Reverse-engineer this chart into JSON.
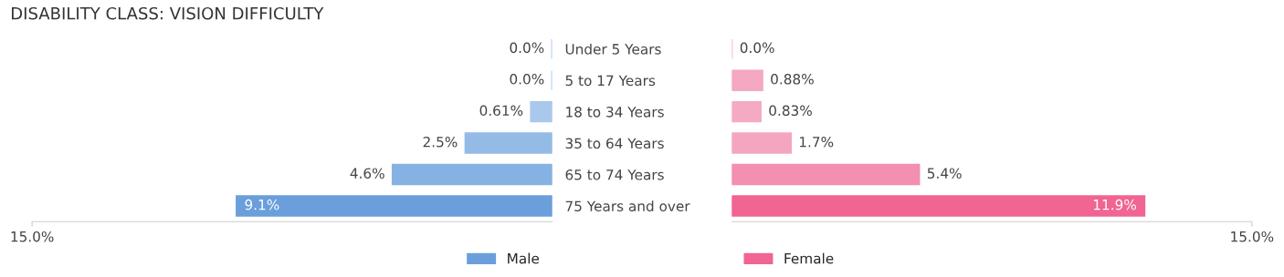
{
  "chart_data": [
    {
      "type": "bar",
      "orientation": "horizontal",
      "title": "DISABILITY CLASS: VISION DIFFICULTY",
      "categories": [
        "Under 5 Years",
        "5 to 17 Years",
        "18 to 34 Years",
        "35 to 64 Years",
        "65 to 74 Years",
        "75 Years and over"
      ],
      "series": [
        {
          "name": "Male",
          "color": "#6a9fdb",
          "values": [
            0.0,
            0.0,
            0.61,
            2.5,
            4.6,
            9.1
          ],
          "colors": [
            "#b3cdee",
            "#b3cdee",
            "#a9c8ec",
            "#94bbe6",
            "#86b2e3",
            "#6a9fdb"
          ],
          "value_labels": [
            "0.0%",
            "0.0%",
            "0.61%",
            "2.5%",
            "4.6%",
            "9.1%"
          ]
        }
      ],
      "xlim": [
        15,
        0
      ],
      "xticks": [
        {
          "value": 15,
          "label": "15.0%"
        }
      ],
      "legend": "bottom right"
    },
    {
      "type": "bar",
      "orientation": "horizontal",
      "categories": [
        null,
        null,
        null,
        null,
        null,
        null
      ],
      "series": [
        {
          "name": "Female",
          "color": "#f06592",
          "values": [
            0.0,
            0.88,
            0.83,
            1.7,
            5.4,
            11.9
          ],
          "colors": [
            "#f7bcd0",
            "#f5a8c2",
            "#f5aac3",
            "#f4a6c0",
            "#f38fb0",
            "#f06592"
          ],
          "value_labels": [
            "0.0%",
            "0.88%",
            "0.83%",
            "1.7%",
            "5.4%",
            "11.9%"
          ]
        }
      ],
      "xlim": [
        0,
        15
      ],
      "xticks": [
        {
          "value": 15,
          "label": "15.0%"
        }
      ],
      "legend": "bottom left",
      "tick_labels": "x"
    }
  ]
}
